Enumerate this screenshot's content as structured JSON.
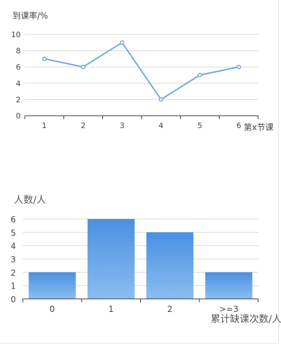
{
  "chart_data": [
    {
      "type": "line",
      "ylabel": "到课率/%",
      "xlabel": "第x节课",
      "categories": [
        "1",
        "2",
        "3",
        "4",
        "5",
        "6"
      ],
      "series": [
        {
          "values": [
            7,
            6,
            9,
            2,
            5,
            6
          ]
        }
      ],
      "ylim": [
        0,
        10
      ],
      "yticks": [
        "0",
        "2",
        "4",
        "6",
        "8",
        "10"
      ],
      "grid": true,
      "color": "#6fa8e0"
    },
    {
      "type": "bar",
      "ylabel": "人数/人",
      "xlabel": "累计缺课次数/人",
      "categories": [
        "0",
        "1",
        "2",
        ">=3"
      ],
      "values": [
        2,
        6,
        5,
        2
      ],
      "ylim": [
        0,
        6
      ],
      "yticks": [
        "0",
        "1",
        "2",
        "3",
        "4",
        "5",
        "6"
      ],
      "grid": true,
      "color_top": "#4a90e2",
      "color_bottom": "#8bbdf0"
    }
  ]
}
